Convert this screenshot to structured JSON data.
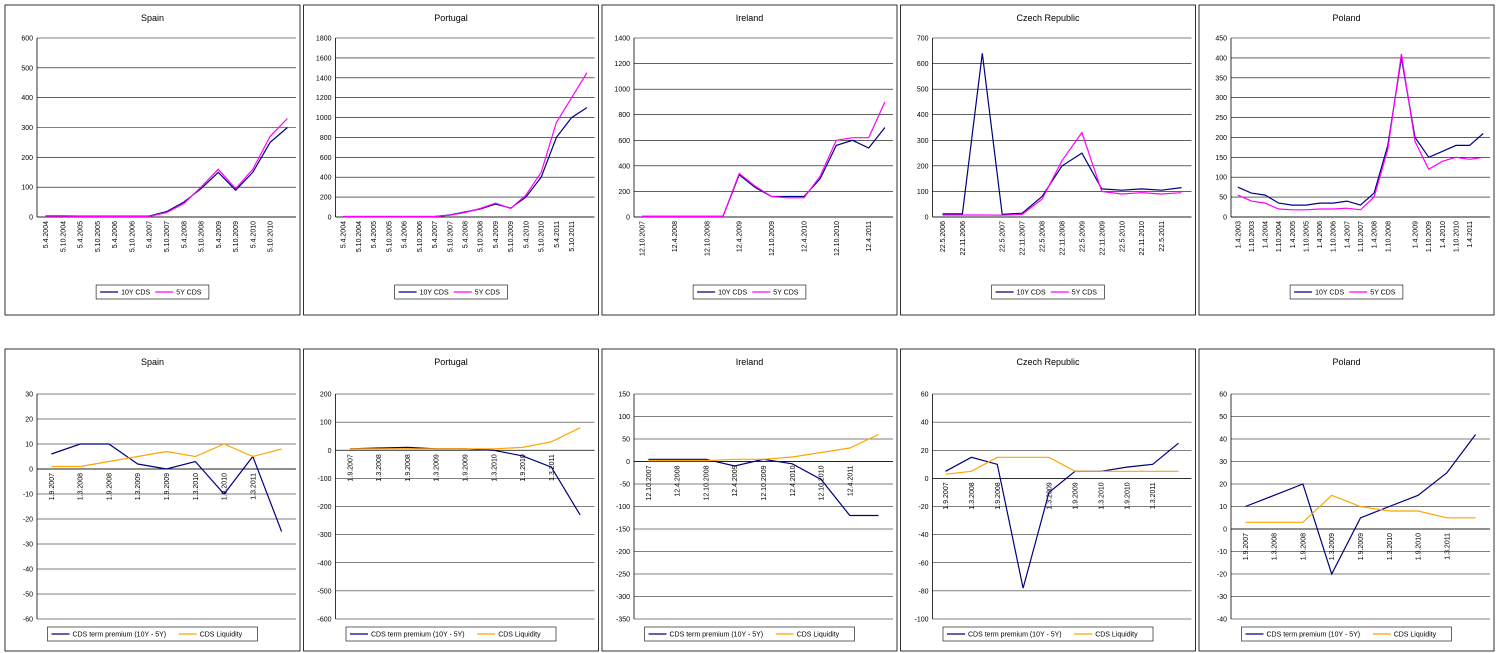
{
  "chart_data": [
    {
      "type": "line",
      "title": "Spain",
      "ylim": [
        0,
        600
      ],
      "yticks": [
        0,
        100,
        200,
        300,
        400,
        500,
        600
      ],
      "grid": true,
      "categories": [
        "5.4.2004",
        "5.10.2004",
        "5.4.2005",
        "5.10.2005",
        "5.4.2006",
        "5.10.2006",
        "5.4.2007",
        "5.10.2007",
        "5.4.2008",
        "5.10.2008",
        "5.4.2009",
        "5.10.2009",
        "5.4.2010",
        "5.10.2010",
        null
      ],
      "series": [
        {
          "name": "10Y CDS",
          "color": "#000080",
          "values": [
            4,
            4,
            3,
            3,
            3,
            3,
            3,
            18,
            50,
            95,
            150,
            90,
            150,
            250,
            300
          ]
        },
        {
          "name": "5Y CDS",
          "color": "#ff00ff",
          "values": [
            3,
            3,
            2,
            2,
            2,
            2,
            2,
            15,
            45,
            100,
            160,
            95,
            160,
            270,
            330
          ]
        }
      ]
    },
    {
      "type": "line",
      "title": "Portugal",
      "ylim": [
        0,
        1800
      ],
      "yticks": [
        0,
        200,
        400,
        600,
        800,
        1000,
        1200,
        1400,
        1600,
        1800
      ],
      "grid": true,
      "categories": [
        "5.4.2004",
        "5.10.2004",
        "5.4.2005",
        "5.10.2005",
        "5.4.2006",
        "5.10.2006",
        "5.4.2007",
        "5.10.2007",
        "5.4.2008",
        "5.10.2008",
        "5.4.2009",
        "5.10.2009",
        "5.4.2010",
        "5.10.2010",
        "5.4.2011",
        "5.10.2011",
        null
      ],
      "series": [
        {
          "name": "10Y CDS",
          "color": "#000080",
          "values": [
            5,
            5,
            5,
            5,
            5,
            5,
            5,
            20,
            50,
            80,
            130,
            90,
            200,
            400,
            800,
            1000,
            1100
          ]
        },
        {
          "name": "5Y CDS",
          "color": "#ff00ff",
          "values": [
            4,
            4,
            4,
            4,
            4,
            4,
            4,
            18,
            45,
            85,
            140,
            85,
            220,
            450,
            950,
            1200,
            1450
          ]
        }
      ]
    },
    {
      "type": "line",
      "title": "Ireland",
      "ylim": [
        0,
        1400
      ],
      "yticks": [
        0,
        200,
        400,
        600,
        800,
        1000,
        1200,
        1400
      ],
      "grid": true,
      "categories": [
        "12.10.2007",
        null,
        "12.4.2008",
        null,
        "12.10.2008",
        null,
        "12.4.2009",
        null,
        "12.10.2009",
        null,
        "12.4.2010",
        null,
        "12.10.2010",
        null,
        "12.4.2011",
        null
      ],
      "series": [
        {
          "name": "10Y CDS",
          "color": "#000080",
          "values": [
            5,
            5,
            5,
            5,
            5,
            5,
            330,
            230,
            160,
            160,
            160,
            300,
            560,
            600,
            540,
            700
          ]
        },
        {
          "name": "5Y CDS",
          "color": "#ff00ff",
          "values": [
            5,
            5,
            5,
            5,
            5,
            5,
            340,
            240,
            160,
            150,
            150,
            320,
            600,
            620,
            620,
            900
          ]
        }
      ]
    },
    {
      "type": "line",
      "title": "Czech Republic",
      "ylim": [
        0,
        700
      ],
      "yticks": [
        0,
        100,
        200,
        300,
        400,
        500,
        600,
        700
      ],
      "grid": true,
      "categories": [
        "22.5.2006",
        "22.11.2006",
        null,
        "22.5.2007",
        "22.11.2007",
        "22.5.2008",
        "22.11.2008",
        "22.5.2009",
        "22.11.2009",
        "22.5.2010",
        "22.11.2010",
        "22.5.2011",
        null
      ],
      "series": [
        {
          "name": "10Y CDS",
          "color": "#000080",
          "values": [
            12,
            12,
            640,
            10,
            15,
            80,
            200,
            250,
            110,
            105,
            110,
            105,
            115
          ]
        },
        {
          "name": "5Y CDS",
          "color": "#ff00ff",
          "values": [
            8,
            8,
            8,
            7,
            10,
            70,
            220,
            330,
            100,
            90,
            95,
            90,
            95
          ]
        }
      ]
    },
    {
      "type": "line",
      "title": "Poland",
      "ylim": [
        0,
        450
      ],
      "yticks": [
        0,
        50,
        100,
        150,
        200,
        250,
        300,
        350,
        400,
        450
      ],
      "grid": true,
      "categories": [
        "1.4.2003",
        "1.10.2003",
        "1.4.2004",
        "1.10.2004",
        "1.4.2005",
        "1.10.2005",
        "1.4.2006",
        "1.10.2006",
        "1.4.2007",
        "1.10.2007",
        "1.4.2008",
        "1.10.2008",
        null,
        "1.4.2009",
        "1.10.2009",
        "1.4.2010",
        "1.10.2010",
        "1.4.2011",
        null
      ],
      "series": [
        {
          "name": "10Y CDS",
          "color": "#000080",
          "values": [
            75,
            60,
            55,
            35,
            30,
            30,
            35,
            35,
            40,
            30,
            60,
            180,
            400,
            200,
            150,
            165,
            180,
            180,
            210
          ]
        },
        {
          "name": "5Y CDS",
          "color": "#ff00ff",
          "values": [
            55,
            40,
            35,
            20,
            18,
            18,
            20,
            20,
            22,
            18,
            50,
            170,
            410,
            190,
            120,
            140,
            150,
            145,
            150
          ]
        }
      ]
    },
    {
      "type": "line",
      "title": "Spain",
      "ylim": [
        -60,
        30
      ],
      "yticks": [
        -60,
        -50,
        -40,
        -30,
        -20,
        -10,
        0,
        10,
        20,
        30
      ],
      "grid": true,
      "categories": [
        "1.9.2007",
        "1.3.2008",
        "1.9.2008",
        "1.3.2009",
        "1.9.2009",
        "1.3.2010",
        "1.9.2010",
        "1.3.2011",
        null
      ],
      "series": [
        {
          "name": "CDS term premium (10Y - 5Y)",
          "color": "#000080",
          "values": [
            6,
            10,
            10,
            2,
            0,
            3,
            -10,
            5,
            -25
          ]
        },
        {
          "name": "CDS Liquidity",
          "color": "#ffa500",
          "values": [
            1,
            1,
            3,
            5,
            7,
            5,
            10,
            5,
            8
          ]
        }
      ]
    },
    {
      "type": "line",
      "title": "Portugal",
      "ylim": [
        -600,
        200
      ],
      "yticks": [
        -600,
        -500,
        -400,
        -300,
        -200,
        -100,
        0,
        100,
        200
      ],
      "grid": true,
      "categories": [
        "1.9.2007",
        "1.3.2008",
        "1.9.2008",
        "1.3.2009",
        "1.9.2009",
        "1.3.2010",
        "1.9.2010",
        "1.3.2011",
        null
      ],
      "series": [
        {
          "name": "CDS term premium (10Y - 5Y)",
          "color": "#000080",
          "values": [
            5,
            8,
            10,
            5,
            5,
            0,
            -20,
            -60,
            -230
          ]
        },
        {
          "name": "CDS Liquidity",
          "color": "#ffa500",
          "values": [
            5,
            5,
            5,
            5,
            5,
            5,
            10,
            30,
            80
          ]
        }
      ]
    },
    {
      "type": "line",
      "title": "Ireland",
      "ylim": [
        -350,
        150
      ],
      "yticks": [
        -350,
        -300,
        -250,
        -200,
        -150,
        -100,
        -50,
        0,
        50,
        100,
        150
      ],
      "grid": true,
      "categories": [
        "12.10.2007",
        "12.4.2008",
        "12.10.2008",
        "12.4.2009",
        "12.10.2009",
        "12.4.2010",
        "12.10.2010",
        "12.4.2011",
        null
      ],
      "series": [
        {
          "name": "CDS term premium (10Y - 5Y)",
          "color": "#000080",
          "values": [
            5,
            5,
            5,
            -10,
            5,
            -5,
            -40,
            -120,
            -120
          ]
        },
        {
          "name": "CDS Liquidity",
          "color": "#ffa500",
          "values": [
            2,
            2,
            2,
            5,
            5,
            10,
            20,
            30,
            60
          ]
        }
      ]
    },
    {
      "type": "line",
      "title": "Czech Republic",
      "ylim": [
        -100,
        60
      ],
      "yticks": [
        -100,
        -80,
        -60,
        -40,
        -20,
        0,
        20,
        40,
        60
      ],
      "grid": true,
      "categories": [
        "1.9.2007",
        "1.3.2008",
        "1.9.2008",
        null,
        "1.3.2009",
        "1.9.2009",
        "1.3.2010",
        "1.9.2010",
        "1.3.2011",
        null
      ],
      "series": [
        {
          "name": "CDS term premium (10Y - 5Y)",
          "color": "#000080",
          "values": [
            5,
            15,
            10,
            -78,
            -10,
            5,
            5,
            8,
            10,
            25
          ]
        },
        {
          "name": "CDS Liquidity",
          "color": "#ffa500",
          "values": [
            3,
            5,
            15,
            15,
            15,
            5,
            5,
            5,
            5,
            5
          ]
        }
      ]
    },
    {
      "type": "line",
      "title": "Poland",
      "ylim": [
        -40,
        60
      ],
      "yticks": [
        -40,
        -30,
        -20,
        -10,
        0,
        10,
        20,
        30,
        40,
        50,
        60
      ],
      "grid": true,
      "categories": [
        "1.9.2007",
        "1.3.2008",
        "1.9.2008",
        "1.3.2009",
        "1.9.2009",
        "1.3.2010",
        "1.9.2010",
        "1.3.2011",
        null
      ],
      "series": [
        {
          "name": "CDS term premium (10Y - 5Y)",
          "color": "#000080",
          "values": [
            10,
            15,
            20,
            -20,
            5,
            10,
            15,
            25,
            42
          ]
        },
        {
          "name": "CDS Liquidity",
          "color": "#ffa500",
          "values": [
            3,
            3,
            3,
            15,
            10,
            8,
            8,
            5,
            5
          ]
        }
      ]
    }
  ]
}
